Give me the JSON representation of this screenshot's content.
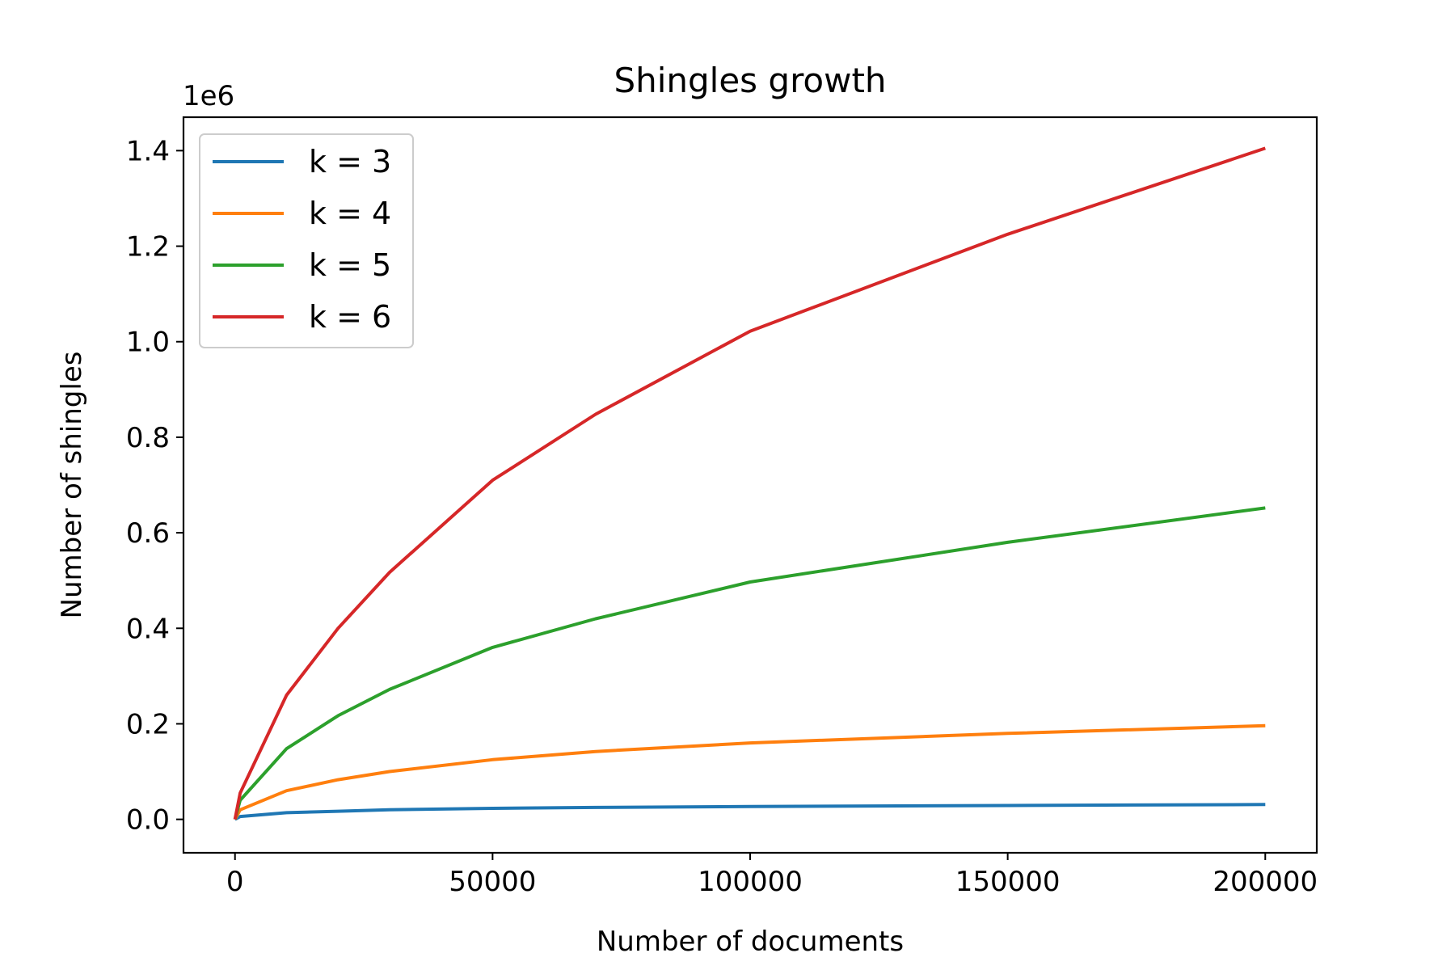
{
  "chart_data": {
    "type": "line",
    "title": "Shingles growth",
    "xlabel": "Number of documents",
    "ylabel": "Number of shingles",
    "y_offset_label": "1e6",
    "xlim": [
      -10000,
      210000
    ],
    "ylim": [
      -0.07,
      1.47
    ],
    "xticks": [
      0,
      50000,
      100000,
      150000,
      200000
    ],
    "xtick_labels": [
      "0",
      "50000",
      "100000",
      "150000",
      "200000"
    ],
    "yticks": [
      0.0,
      0.2,
      0.4,
      0.6,
      0.8,
      1.0,
      1.2,
      1.4
    ],
    "ytick_labels": [
      "0.0",
      "0.2",
      "0.4",
      "0.6",
      "0.8",
      "1.0",
      "1.2",
      "1.4"
    ],
    "grid": false,
    "legend_position": "upper-left",
    "x": [
      0,
      1000,
      10000,
      20000,
      30000,
      50000,
      70000,
      100000,
      150000,
      200000
    ],
    "series": [
      {
        "name": "k = 3",
        "color": "#1f77b4",
        "values": [
          0.0,
          0.006,
          0.014,
          0.017,
          0.02,
          0.023,
          0.025,
          0.027,
          0.029,
          0.031
        ]
      },
      {
        "name": "k = 4",
        "color": "#ff7f0e",
        "values": [
          0.0,
          0.02,
          0.06,
          0.083,
          0.1,
          0.125,
          0.142,
          0.16,
          0.18,
          0.196
        ]
      },
      {
        "name": "k = 5",
        "color": "#2ca02c",
        "values": [
          0.0,
          0.04,
          0.148,
          0.217,
          0.272,
          0.36,
          0.42,
          0.497,
          0.58,
          0.652
        ]
      },
      {
        "name": "k = 6",
        "color": "#d62728",
        "values": [
          0.0,
          0.055,
          0.26,
          0.4,
          0.517,
          0.71,
          0.848,
          1.022,
          1.225,
          1.405
        ]
      }
    ]
  }
}
